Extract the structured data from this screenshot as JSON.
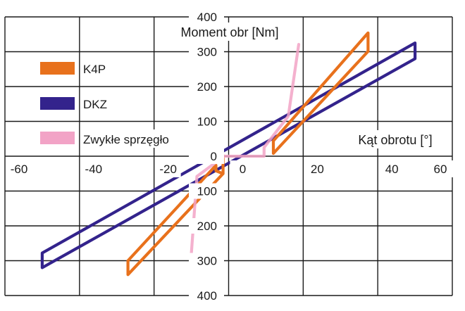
{
  "chart_data": {
    "type": "line",
    "title": "",
    "xlabel": "Kąt obrotu [°]",
    "ylabel": "Moment obr [Nm]",
    "xlim": [
      -60,
      60
    ],
    "ylim": [
      -400,
      400
    ],
    "grid": true,
    "legend_position": "top-left",
    "x_ticks": [
      -60,
      -40,
      -20,
      0,
      20,
      40,
      60
    ],
    "x_tick_labels": [
      "-60",
      "-40",
      "-20",
      "0",
      "20",
      "40",
      "60"
    ],
    "y_ticks": [
      400,
      300,
      200,
      100,
      0,
      -100,
      -200,
      -300,
      -400
    ],
    "y_tick_labels": [
      "400",
      "300",
      "200",
      "100",
      "0",
      "100",
      "200",
      "300",
      "400"
    ],
    "series": [
      {
        "name": "DKZ",
        "color": "#33238c",
        "points": [
          [
            -50,
            -320
          ],
          [
            50,
            280
          ],
          [
            50,
            325
          ],
          [
            -50,
            -278
          ],
          [
            -50,
            -320
          ]
        ]
      },
      {
        "name": "K4P",
        "color": "#e8711c",
        "points": [
          [
            -2.5,
            2
          ],
          [
            -1.5,
            2
          ],
          [
            -1.5,
            -50
          ],
          [
            -27,
            -340
          ],
          [
            -27,
            -300
          ],
          [
            -3.4,
            -26
          ],
          [
            -3.4,
            -42
          ],
          [
            -1.5,
            -50
          ]
        ],
        "points_2": [
          [
            12,
            8
          ],
          [
            37.4,
            301
          ],
          [
            37.4,
            354
          ],
          [
            12,
            44
          ],
          [
            12,
            8
          ]
        ]
      },
      {
        "name": "Zwykłe sprzęgło",
        "color": "#f2a3c6",
        "points": [
          [
            -10.2,
            -310
          ],
          [
            -8.5,
            -58
          ],
          [
            -1.2,
            0
          ],
          [
            9.5,
            0
          ],
          [
            9.5,
            25
          ],
          [
            16.0,
            115
          ],
          [
            18.8,
            321
          ]
        ]
      }
    ]
  }
}
